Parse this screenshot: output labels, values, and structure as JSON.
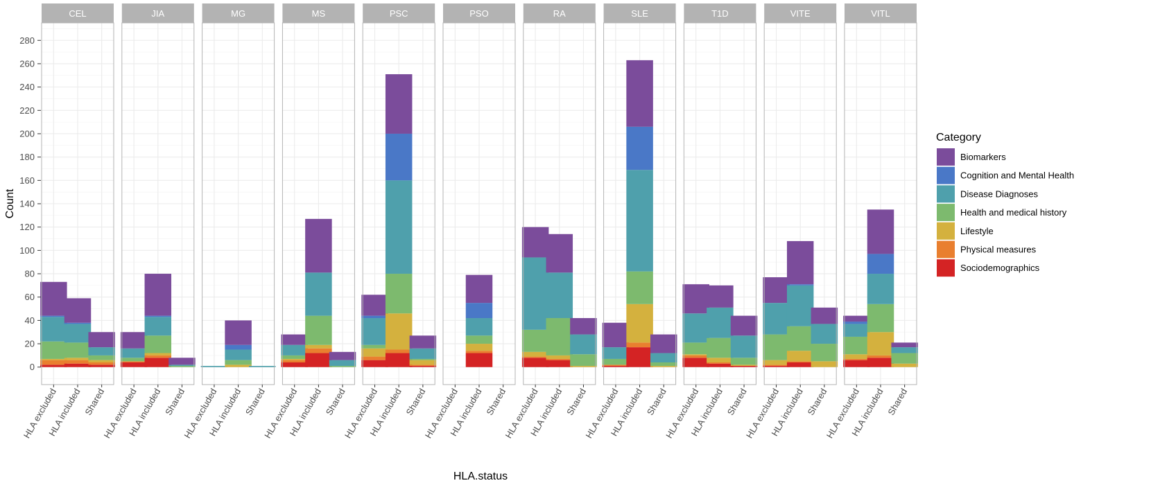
{
  "chart_data": {
    "type": "bar",
    "stacked": true,
    "faceted": true,
    "xlabel": "HLA.status",
    "ylabel": "Count",
    "ylim": [
      -15,
      295
    ],
    "y_ticks": [
      0,
      20,
      40,
      60,
      80,
      100,
      120,
      140,
      160,
      180,
      200,
      220,
      240,
      260,
      280
    ],
    "categories": [
      "HLA excluded",
      "HLA included",
      "Shared"
    ],
    "legend_title": "Category",
    "legend_position": "right",
    "series": [
      {
        "name": "Biomarkers",
        "color": "#7B4C9B"
      },
      {
        "name": "Cognition and Mental Health",
        "color": "#4A78C7"
      },
      {
        "name": "Disease Diagnoses",
        "color": "#4FA0AC"
      },
      {
        "name": "Health and medical history",
        "color": "#7DBA6E"
      },
      {
        "name": "Lifestyle",
        "color": "#D4B13E"
      },
      {
        "name": "Physical measures",
        "color": "#E97F2F"
      },
      {
        "name": "Sociodemographics",
        "color": "#D42324"
      }
    ],
    "stack_order": [
      "Sociodemographics",
      "Physical measures",
      "Lifestyle",
      "Health and medical history",
      "Disease Diagnoses",
      "Cognition and Mental Health",
      "Biomarkers"
    ],
    "panels": [
      {
        "label": "CEL",
        "bars": [
          {
            "category": "HLA excluded",
            "values": {
              "Sociodemographics": 2,
              "Physical measures": 4,
              "Lifestyle": 1,
              "Health and medical history": 15,
              "Disease Diagnoses": 21,
              "Cognition and Mental Health": 1,
              "Biomarkers": 29
            }
          },
          {
            "category": "HLA included",
            "values": {
              "Sociodemographics": 3,
              "Physical measures": 3,
              "Lifestyle": 2,
              "Health and medical history": 13,
              "Disease Diagnoses": 16,
              "Cognition and Mental Health": 1,
              "Biomarkers": 21
            }
          },
          {
            "category": "Shared",
            "values": {
              "Sociodemographics": 2,
              "Physical measures": 2,
              "Lifestyle": 2,
              "Health and medical history": 4,
              "Disease Diagnoses": 7,
              "Cognition and Mental Health": 0,
              "Biomarkers": 13
            }
          }
        ]
      },
      {
        "label": "JIA",
        "bars": [
          {
            "category": "HLA excluded",
            "values": {
              "Sociodemographics": 4,
              "Physical measures": 1,
              "Lifestyle": 0,
              "Health and medical history": 3,
              "Disease Diagnoses": 8,
              "Cognition and Mental Health": 0,
              "Biomarkers": 14
            }
          },
          {
            "category": "HLA included",
            "values": {
              "Sociodemographics": 8,
              "Physical measures": 2,
              "Lifestyle": 2,
              "Health and medical history": 15,
              "Disease Diagnoses": 16,
              "Cognition and Mental Health": 1,
              "Biomarkers": 36
            }
          },
          {
            "category": "Shared",
            "values": {
              "Sociodemographics": 0,
              "Physical measures": 0,
              "Lifestyle": 0,
              "Health and medical history": 1,
              "Disease Diagnoses": 1,
              "Cognition and Mental Health": 0,
              "Biomarkers": 6
            }
          }
        ]
      },
      {
        "label": "MG",
        "bars": [
          {
            "category": "HLA excluded",
            "values": {
              "Sociodemographics": 0,
              "Physical measures": 0,
              "Lifestyle": 0,
              "Health and medical history": 0,
              "Disease Diagnoses": 1,
              "Cognition and Mental Health": 0,
              "Biomarkers": 0
            }
          },
          {
            "category": "HLA included",
            "values": {
              "Sociodemographics": 0,
              "Physical measures": 0,
              "Lifestyle": 2,
              "Health and medical history": 4,
              "Disease Diagnoses": 9,
              "Cognition and Mental Health": 4,
              "Biomarkers": 21
            }
          },
          {
            "category": "Shared",
            "values": {
              "Sociodemographics": 0,
              "Physical measures": 0,
              "Lifestyle": 0,
              "Health and medical history": 0,
              "Disease Diagnoses": 1,
              "Cognition and Mental Health": 0,
              "Biomarkers": 0
            }
          }
        ]
      },
      {
        "label": "MS",
        "bars": [
          {
            "category": "HLA excluded",
            "values": {
              "Sociodemographics": 4,
              "Physical measures": 2,
              "Lifestyle": 1,
              "Health and medical history": 3,
              "Disease Diagnoses": 9,
              "Cognition and Mental Health": 0,
              "Biomarkers": 9
            }
          },
          {
            "category": "HLA included",
            "values": {
              "Sociodemographics": 12,
              "Physical measures": 4,
              "Lifestyle": 3,
              "Health and medical history": 25,
              "Disease Diagnoses": 37,
              "Cognition and Mental Health": 0,
              "Biomarkers": 46
            }
          },
          {
            "category": "Shared",
            "values": {
              "Sociodemographics": 0,
              "Physical measures": 0,
              "Lifestyle": 0,
              "Health and medical history": 1,
              "Disease Diagnoses": 5,
              "Cognition and Mental Health": 0,
              "Biomarkers": 7
            }
          }
        ]
      },
      {
        "label": "PSC",
        "bars": [
          {
            "category": "HLA excluded",
            "values": {
              "Sociodemographics": 6,
              "Physical measures": 3,
              "Lifestyle": 7,
              "Health and medical history": 3,
              "Disease Diagnoses": 23,
              "Cognition and Mental Health": 2,
              "Biomarkers": 18
            }
          },
          {
            "category": "HLA included",
            "values": {
              "Sociodemographics": 12,
              "Physical measures": 3,
              "Lifestyle": 31,
              "Health and medical history": 34,
              "Disease Diagnoses": 80,
              "Cognition and Mental Health": 40,
              "Biomarkers": 51
            }
          },
          {
            "category": "Shared",
            "values": {
              "Sociodemographics": 1,
              "Physical measures": 1,
              "Lifestyle": 4,
              "Health and medical history": 1,
              "Disease Diagnoses": 9,
              "Cognition and Mental Health": 0,
              "Biomarkers": 11
            }
          }
        ]
      },
      {
        "label": "PSO",
        "bars": [
          {
            "category": "HLA excluded",
            "values": {
              "Sociodemographics": 0,
              "Physical measures": 0,
              "Lifestyle": 0,
              "Health and medical history": 0,
              "Disease Diagnoses": 0,
              "Cognition and Mental Health": 0,
              "Biomarkers": 0
            }
          },
          {
            "category": "HLA included",
            "values": {
              "Sociodemographics": 12,
              "Physical measures": 2,
              "Lifestyle": 6,
              "Health and medical history": 7,
              "Disease Diagnoses": 15,
              "Cognition and Mental Health": 13,
              "Biomarkers": 24
            }
          },
          {
            "category": "Shared",
            "values": {
              "Sociodemographics": 0,
              "Physical measures": 0,
              "Lifestyle": 0,
              "Health and medical history": 0,
              "Disease Diagnoses": 0,
              "Cognition and Mental Health": 0,
              "Biomarkers": 0
            }
          }
        ]
      },
      {
        "label": "RA",
        "bars": [
          {
            "category": "HLA excluded",
            "values": {
              "Sociodemographics": 8,
              "Physical measures": 1,
              "Lifestyle": 4,
              "Health and medical history": 19,
              "Disease Diagnoses": 62,
              "Cognition and Mental Health": 0,
              "Biomarkers": 26
            }
          },
          {
            "category": "HLA included",
            "values": {
              "Sociodemographics": 6,
              "Physical measures": 1,
              "Lifestyle": 3,
              "Health and medical history": 32,
              "Disease Diagnoses": 39,
              "Cognition and Mental Health": 0,
              "Biomarkers": 33
            }
          },
          {
            "category": "Shared",
            "values": {
              "Sociodemographics": 0,
              "Physical measures": 0,
              "Lifestyle": 1,
              "Health and medical history": 10,
              "Disease Diagnoses": 17,
              "Cognition and Mental Health": 0,
              "Biomarkers": 14
            }
          }
        ]
      },
      {
        "label": "SLE",
        "bars": [
          {
            "category": "HLA excluded",
            "values": {
              "Sociodemographics": 1,
              "Physical measures": 1,
              "Lifestyle": 0,
              "Health and medical history": 5,
              "Disease Diagnoses": 10,
              "Cognition and Mental Health": 0,
              "Biomarkers": 21
            }
          },
          {
            "category": "HLA included",
            "values": {
              "Sociodemographics": 17,
              "Physical measures": 4,
              "Lifestyle": 33,
              "Health and medical history": 28,
              "Disease Diagnoses": 87,
              "Cognition and Mental Health": 37,
              "Biomarkers": 57
            }
          },
          {
            "category": "Shared",
            "values": {
              "Sociodemographics": 0,
              "Physical measures": 0,
              "Lifestyle": 1,
              "Health and medical history": 3,
              "Disease Diagnoses": 8,
              "Cognition and Mental Health": 0,
              "Biomarkers": 16
            }
          }
        ]
      },
      {
        "label": "T1D",
        "bars": [
          {
            "category": "HLA excluded",
            "values": {
              "Sociodemographics": 8,
              "Physical measures": 2,
              "Lifestyle": 1,
              "Health and medical history": 10,
              "Disease Diagnoses": 25,
              "Cognition and Mental Health": 0,
              "Biomarkers": 25
            }
          },
          {
            "category": "HLA included",
            "values": {
              "Sociodemographics": 3,
              "Physical measures": 1,
              "Lifestyle": 4,
              "Health and medical history": 17,
              "Disease Diagnoses": 26,
              "Cognition and Mental Health": 0,
              "Biomarkers": 19
            }
          },
          {
            "category": "Shared",
            "values": {
              "Sociodemographics": 1,
              "Physical measures": 0,
              "Lifestyle": 1,
              "Health and medical history": 6,
              "Disease Diagnoses": 19,
              "Cognition and Mental Health": 0,
              "Biomarkers": 17
            }
          }
        ]
      },
      {
        "label": "VITE",
        "bars": [
          {
            "category": "HLA excluded",
            "values": {
              "Sociodemographics": 1,
              "Physical measures": 1,
              "Lifestyle": 4,
              "Health and medical history": 22,
              "Disease Diagnoses": 27,
              "Cognition and Mental Health": 0,
              "Biomarkers": 22
            }
          },
          {
            "category": "HLA included",
            "values": {
              "Sociodemographics": 4,
              "Physical measures": 1,
              "Lifestyle": 9,
              "Health and medical history": 21,
              "Disease Diagnoses": 35,
              "Cognition and Mental Health": 1,
              "Biomarkers": 37
            }
          },
          {
            "category": "Shared",
            "values": {
              "Sociodemographics": 0,
              "Physical measures": 0,
              "Lifestyle": 5,
              "Health and medical history": 15,
              "Disease Diagnoses": 17,
              "Cognition and Mental Health": 0,
              "Biomarkers": 14
            }
          }
        ]
      },
      {
        "label": "VITL",
        "bars": [
          {
            "category": "HLA excluded",
            "values": {
              "Sociodemographics": 6,
              "Physical measures": 1,
              "Lifestyle": 4,
              "Health and medical history": 15,
              "Disease Diagnoses": 11,
              "Cognition and Mental Health": 2,
              "Biomarkers": 5
            }
          },
          {
            "category": "HLA included",
            "values": {
              "Sociodemographics": 8,
              "Physical measures": 2,
              "Lifestyle": 20,
              "Health and medical history": 24,
              "Disease Diagnoses": 26,
              "Cognition and Mental Health": 17,
              "Biomarkers": 38
            }
          },
          {
            "category": "Shared",
            "values": {
              "Sociodemographics": 0,
              "Physical measures": 0,
              "Lifestyle": 3,
              "Health and medical history": 9,
              "Disease Diagnoses": 5,
              "Cognition and Mental Health": 0,
              "Biomarkers": 4
            }
          }
        ]
      }
    ]
  }
}
